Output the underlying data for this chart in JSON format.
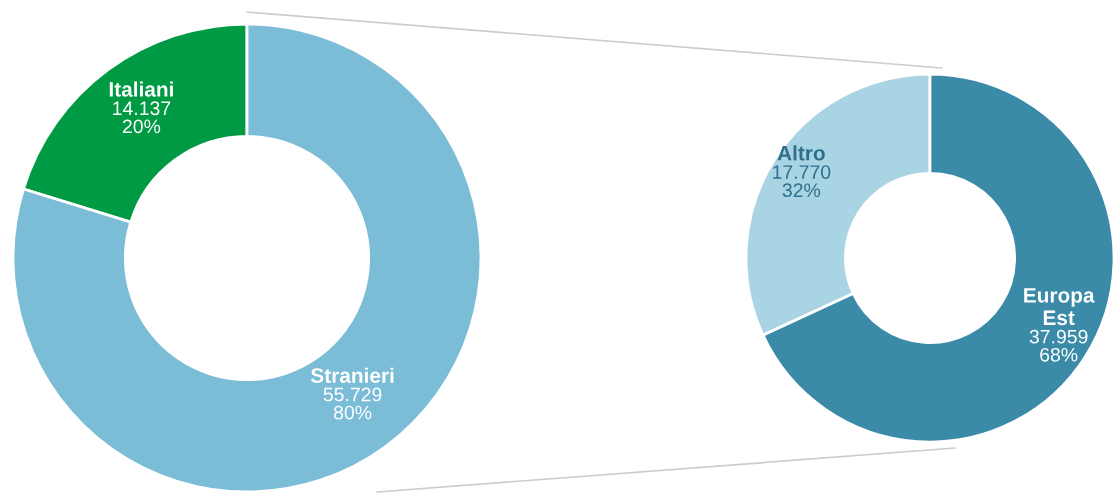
{
  "chart_data": [
    {
      "type": "donut",
      "categories": [
        "Italiani",
        "Stranieri"
      ],
      "values": [
        14137,
        55729
      ],
      "colors": [
        "#009a44",
        "#7bbdd6"
      ],
      "value_labels": [
        "14.137\n20%",
        "55.729\n80%"
      ]
    },
    {
      "type": "donut",
      "categories": [
        "Altro",
        "Europa\nEst"
      ],
      "values": [
        17770,
        37959
      ],
      "colors": [
        "#a8d4e4",
        "#3a8aa8"
      ],
      "value_labels": [
        "17.770\n32%",
        "37.959\n68%"
      ]
    }
  ]
}
